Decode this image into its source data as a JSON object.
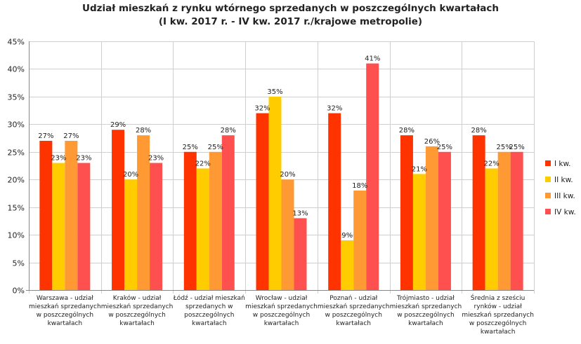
{
  "chart_data": {
    "type": "bar",
    "title_line1": "Udział mieszkań z rynku wtórnego sprzedanych w poszczególnych kwartałach",
    "title_line2": "(I kw. 2017 r. - IV kw. 2017 r./krajowe metropolie)",
    "ylim": [
      0,
      45
    ],
    "yticks": [
      "0%",
      "5%",
      "10%",
      "15%",
      "20%",
      "25%",
      "30%",
      "35%",
      "40%",
      "45%"
    ],
    "ytick_values": [
      0,
      5,
      10,
      15,
      20,
      25,
      30,
      35,
      40,
      45
    ],
    "categories": [
      [
        "Warszawa - udział",
        "mieszkań sprzedanych",
        "w poszczególnych",
        "kwartałach"
      ],
      [
        "Kraków - udział",
        "mieszkań sprzedanych",
        "w poszczególnych",
        "kwartałach"
      ],
      [
        "Łódź - udział mieszkań",
        "sprzedanych w",
        "poszczególnych",
        "kwartałach"
      ],
      [
        "Wrocław - udział",
        "mieszkań sprzedanych",
        "w poszczególnych",
        "kwartałach"
      ],
      [
        "Poznań - udział",
        "mieszkań sprzedanych",
        "w poszczególnych",
        "kwartałach"
      ],
      [
        "Trójmiasto - udział",
        "mieszkań sprzedanych",
        "w poszczególnych",
        "kwartałach"
      ],
      [
        "Średnia z sześciu",
        "rynków - udział",
        "mieszkań sprzedanych",
        "w poszczególnych",
        "kwartałach"
      ]
    ],
    "series": [
      {
        "name": "I kw.",
        "color": "#ff3300",
        "values": [
          27,
          29,
          25,
          32,
          32,
          28,
          28
        ],
        "labels": [
          "27%",
          "29%",
          "25%",
          "32%",
          "32%",
          "28%",
          "28%"
        ]
      },
      {
        "name": "II kw.",
        "color": "#ffcc00",
        "values": [
          23,
          20,
          22,
          35,
          9,
          21,
          22
        ],
        "labels": [
          "23%",
          "20%",
          "22%",
          "35%",
          "9%",
          "21%",
          "22%"
        ]
      },
      {
        "name": "III kw.",
        "color": "#ff9933",
        "values": [
          27,
          28,
          25,
          20,
          18,
          26,
          25
        ],
        "labels": [
          "27%",
          "28%",
          "25%",
          "20%",
          "18%",
          "26%",
          "25%"
        ]
      },
      {
        "name": "IV kw.",
        "color": "#ff5050",
        "values": [
          23,
          23,
          28,
          13,
          41,
          25,
          25
        ],
        "labels": [
          "23%",
          "23%",
          "28%",
          "13%",
          "41%",
          "25%",
          "25%"
        ]
      }
    ],
    "legend_position": "right",
    "grid": true
  }
}
